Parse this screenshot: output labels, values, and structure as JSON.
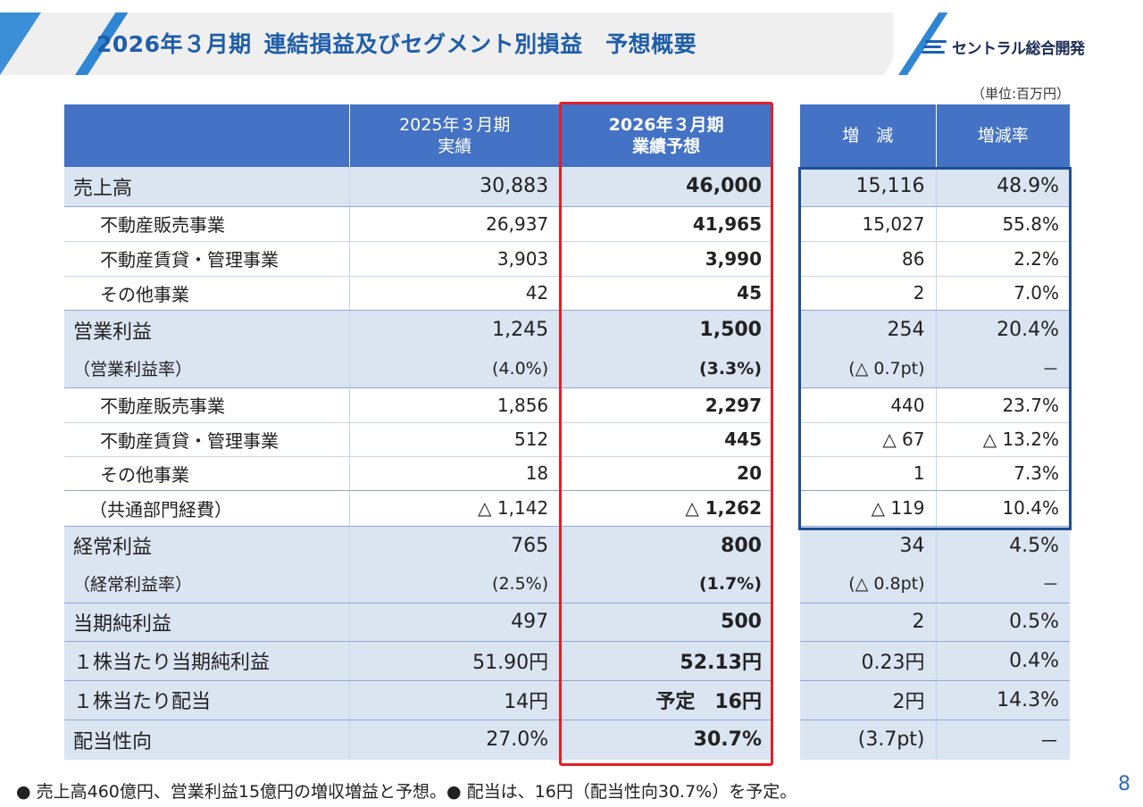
{
  "header": {
    "title_part1": "2026年３月期",
    "title_part2": "連結損益及びセグメント別損益　予想概要",
    "logo_text": "セントラル総合開発"
  },
  "unit": "（単位:百万円）",
  "columns": {
    "prev_line1": "2025年３月期",
    "prev_line2": "実績",
    "fcst_line1": "2026年３月期",
    "fcst_line2": "業績予想",
    "diff": "増　減",
    "rate": "増減率"
  },
  "rows": [
    {
      "label": "売上高",
      "prev": "30,883",
      "fcst": "46,000",
      "diff": "15,116",
      "rate": "48.9%"
    },
    {
      "label": "不動産販売事業",
      "prev": "26,937",
      "fcst": "41,965",
      "diff": "15,027",
      "rate": "55.8%"
    },
    {
      "label": "不動産賃貸・管理事業",
      "prev": "3,903",
      "fcst": "3,990",
      "diff": "86",
      "rate": "2.2%"
    },
    {
      "label": "その他事業",
      "prev": "42",
      "fcst": "45",
      "diff": "2",
      "rate": "7.0%"
    },
    {
      "label": "営業利益",
      "prev": "1,245",
      "fcst": "1,500",
      "diff": "254",
      "rate": "20.4%"
    },
    {
      "label": "（営業利益率）",
      "prev": "(4.0%)",
      "fcst": "(3.3%)",
      "diff": "(△ 0.7pt)",
      "rate": "－"
    },
    {
      "label": "不動産販売事業",
      "prev": "1,856",
      "fcst": "2,297",
      "diff": "440",
      "rate": "23.7%"
    },
    {
      "label": "不動産賃貸・管理事業",
      "prev": "512",
      "fcst": "445",
      "diff": "△ 67",
      "rate": "△ 13.2%"
    },
    {
      "label": "その他事業",
      "prev": "18",
      "fcst": "20",
      "diff": "1",
      "rate": "7.3%"
    },
    {
      "label": "（共通部門経費）",
      "prev": "△ 1,142",
      "fcst": "△ 1,262",
      "diff": "△ 119",
      "rate": "10.4%"
    },
    {
      "label": "経常利益",
      "prev": "765",
      "fcst": "800",
      "diff": "34",
      "rate": "4.5%"
    },
    {
      "label": "（経常利益率）",
      "prev": "(2.5%)",
      "fcst": "(1.7%)",
      "diff": "(△ 0.8pt)",
      "rate": "－"
    },
    {
      "label": "当期純利益",
      "prev": "497",
      "fcst": "500",
      "diff": "2",
      "rate": "0.5%"
    },
    {
      "label": "１株当たり当期純利益",
      "prev": "51.90円",
      "fcst": "52.13円",
      "diff": "0.23円",
      "rate": "0.4%"
    },
    {
      "label": "１株当たり配当",
      "prev": "14円",
      "fcst": "予定　16円",
      "diff": "2円",
      "rate": "14.3%"
    },
    {
      "label": "配当性向",
      "prev": "27.0%",
      "fcst": "30.7%",
      "diff": "(3.7pt)",
      "rate": "－"
    }
  ],
  "footer": "● 売上高460億円、営業利益15億円の増収増益と予想。● 配当は、16円（配当性向30.7%）を予定。",
  "page_number": "8",
  "colors": {
    "header_blue": "#4472c4",
    "shade": "#dbe4f1",
    "highlight_red": "#e41e26",
    "highlight_blue": "#1c4f96",
    "title_blue": "#1f5ea8"
  }
}
